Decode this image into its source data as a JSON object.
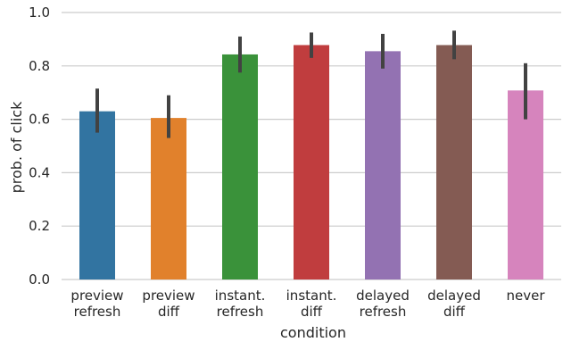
{
  "chart_data": {
    "type": "bar",
    "xlabel": "condition",
    "ylabel": "prob. of click",
    "ylim": [
      0,
      1.0
    ],
    "yticks": [
      "0.0",
      "0.2",
      "0.4",
      "0.6",
      "0.8",
      "1.0"
    ],
    "grid": "horizontal",
    "categories": [
      [
        "preview",
        "refresh"
      ],
      [
        "preview",
        "diff"
      ],
      [
        "instant.",
        "refresh"
      ],
      [
        "instant.",
        "diff"
      ],
      [
        "delayed",
        "refresh"
      ],
      [
        "delayed",
        "diff"
      ],
      [
        "never"
      ]
    ],
    "values": [
      0.63,
      0.605,
      0.843,
      0.878,
      0.855,
      0.878,
      0.708
    ],
    "error_low": [
      0.55,
      0.53,
      0.775,
      0.83,
      0.79,
      0.825,
      0.6
    ],
    "error_high": [
      0.715,
      0.69,
      0.91,
      0.925,
      0.92,
      0.932,
      0.81
    ],
    "colors": [
      "#3274a1",
      "#e1812c",
      "#3a923a",
      "#c03d3e",
      "#9372b2",
      "#845b53",
      "#d684bd"
    ]
  }
}
